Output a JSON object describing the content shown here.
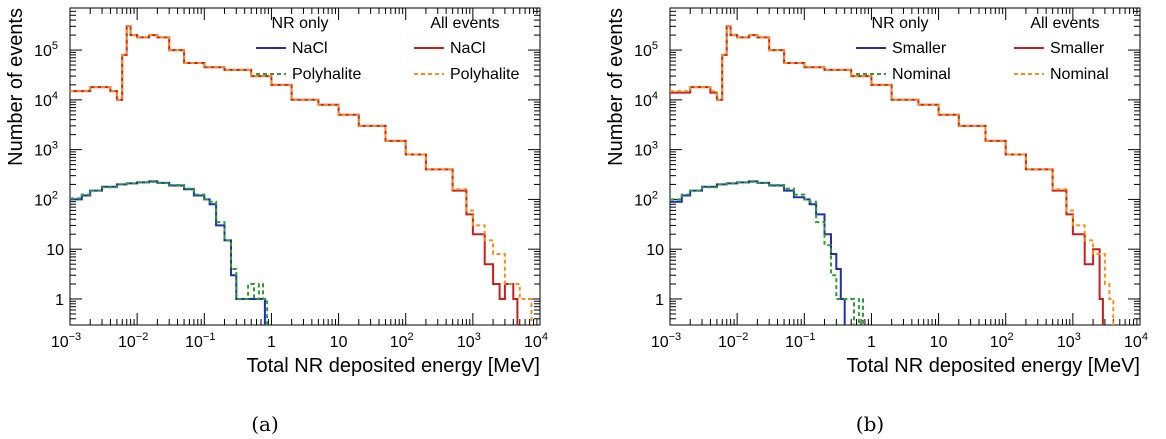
{
  "chart_data": [
    {
      "type": "line",
      "panel_label": "(a)",
      "xlabel": "Total NR deposited energy [MeV]",
      "ylabel": "Number of events",
      "x_scale": "log",
      "y_scale": "log",
      "xlim": [
        0.001,
        10000
      ],
      "ylim": [
        0.3,
        700000
      ],
      "x_ticks": [
        {
          "label": "10",
          "sup": "−3"
        },
        {
          "label": "10",
          "sup": "−2"
        },
        {
          "label": "10",
          "sup": "−1"
        },
        {
          "label": "1",
          "sup": ""
        },
        {
          "label": "10",
          "sup": ""
        },
        {
          "label": "10",
          "sup": "2"
        },
        {
          "label": "10",
          "sup": "3"
        },
        {
          "label": "10",
          "sup": "4"
        }
      ],
      "y_ticks": [
        {
          "label": "1",
          "sup": ""
        },
        {
          "label": "10",
          "sup": ""
        },
        {
          "label": "10",
          "sup": "2"
        },
        {
          "label": "10",
          "sup": "3"
        },
        {
          "label": "10",
          "sup": "4"
        },
        {
          "label": "10",
          "sup": "5"
        }
      ],
      "legend_headers": [
        "NR only",
        "All events"
      ],
      "series": [
        {
          "name": "NaCl",
          "group": "NR only",
          "color": "#1f2fb0",
          "style": "solid",
          "x": [
            0.001,
            0.0015,
            0.002,
            0.003,
            0.005,
            0.007,
            0.01,
            0.015,
            0.02,
            0.03,
            0.05,
            0.07,
            0.1,
            0.12,
            0.15,
            0.2,
            0.25,
            0.3,
            0.45,
            0.6,
            0.75,
            0.8
          ],
          "y": [
            100,
            120,
            150,
            180,
            200,
            210,
            220,
            230,
            215,
            190,
            160,
            120,
            100,
            80,
            30,
            15,
            3,
            1,
            1,
            1,
            1,
            0
          ]
        },
        {
          "name": "Polyhalite",
          "group": "NR only",
          "color": "#2ca02c",
          "style": "dotted",
          "x": [
            0.001,
            0.0015,
            0.002,
            0.003,
            0.005,
            0.007,
            0.01,
            0.015,
            0.02,
            0.03,
            0.05,
            0.07,
            0.1,
            0.12,
            0.15,
            0.2,
            0.25,
            0.3,
            0.45,
            0.55,
            0.65,
            0.75
          ],
          "y": [
            105,
            125,
            150,
            175,
            200,
            210,
            220,
            225,
            215,
            195,
            165,
            125,
            100,
            90,
            35,
            15,
            4,
            1,
            2,
            1,
            2,
            1
          ]
        },
        {
          "name": "NaCl",
          "group": "All events",
          "color": "#c81e1e",
          "style": "solid",
          "x": [
            0.001,
            0.002,
            0.004,
            0.005,
            0.006,
            0.007,
            0.008,
            0.01,
            0.015,
            0.02,
            0.03,
            0.05,
            0.1,
            0.2,
            0.5,
            1,
            2,
            5,
            10,
            20,
            50,
            100,
            200,
            500,
            800,
            1000,
            1500,
            2000,
            2500,
            3000,
            4000
          ],
          "y": [
            15000,
            18000,
            15000,
            10000,
            80000,
            300000,
            200000,
            180000,
            200000,
            180000,
            100000,
            55000,
            45000,
            40000,
            30000,
            20000,
            10000,
            8000,
            5000,
            3000,
            1500,
            800,
            400,
            150,
            50,
            20,
            5,
            2,
            1,
            2,
            1
          ]
        },
        {
          "name": "Polyhalite",
          "group": "All events",
          "color": "#ff8c1a",
          "style": "dotted",
          "x": [
            0.001,
            0.002,
            0.004,
            0.005,
            0.006,
            0.007,
            0.008,
            0.01,
            0.015,
            0.02,
            0.03,
            0.05,
            0.1,
            0.2,
            0.5,
            1,
            2,
            5,
            10,
            20,
            50,
            100,
            200,
            500,
            800,
            1000,
            1500,
            2000,
            3000,
            5000,
            6500
          ],
          "y": [
            15000,
            18000,
            15000,
            10000,
            80000,
            300000,
            200000,
            180000,
            200000,
            180000,
            100000,
            55000,
            45000,
            40000,
            30000,
            20000,
            10000,
            8000,
            5000,
            3000,
            1500,
            800,
            400,
            160,
            60,
            30,
            15,
            8,
            2,
            1,
            1
          ]
        }
      ]
    },
    {
      "type": "line",
      "panel_label": "(b)",
      "xlabel": "Total NR deposited energy [MeV]",
      "ylabel": "Number of events",
      "x_scale": "log",
      "y_scale": "log",
      "xlim": [
        0.001,
        10000
      ],
      "ylim": [
        0.3,
        700000
      ],
      "x_ticks": [
        {
          "label": "10",
          "sup": "−3"
        },
        {
          "label": "10",
          "sup": "−2"
        },
        {
          "label": "10",
          "sup": "−1"
        },
        {
          "label": "1",
          "sup": ""
        },
        {
          "label": "10",
          "sup": ""
        },
        {
          "label": "10",
          "sup": "2"
        },
        {
          "label": "10",
          "sup": "3"
        },
        {
          "label": "10",
          "sup": "4"
        }
      ],
      "y_ticks": [
        {
          "label": "1",
          "sup": ""
        },
        {
          "label": "10",
          "sup": ""
        },
        {
          "label": "10",
          "sup": "2"
        },
        {
          "label": "10",
          "sup": "3"
        },
        {
          "label": "10",
          "sup": "4"
        },
        {
          "label": "10",
          "sup": "5"
        }
      ],
      "legend_headers": [
        "NR only",
        "All events"
      ],
      "series": [
        {
          "name": "Smaller",
          "group": "NR only",
          "color": "#1f2fb0",
          "style": "solid",
          "x": [
            0.001,
            0.0015,
            0.002,
            0.003,
            0.005,
            0.007,
            0.01,
            0.015,
            0.02,
            0.03,
            0.05,
            0.07,
            0.1,
            0.12,
            0.15,
            0.2,
            0.25,
            0.3,
            0.35,
            0.4
          ],
          "y": [
            90,
            120,
            150,
            180,
            200,
            210,
            220,
            230,
            215,
            190,
            150,
            110,
            100,
            80,
            50,
            20,
            8,
            4,
            1,
            0
          ]
        },
        {
          "name": "Nominal",
          "group": "NR only",
          "color": "#2ca02c",
          "style": "dotted",
          "x": [
            0.001,
            0.0015,
            0.002,
            0.003,
            0.005,
            0.007,
            0.01,
            0.015,
            0.02,
            0.03,
            0.05,
            0.07,
            0.1,
            0.12,
            0.15,
            0.2,
            0.25,
            0.3,
            0.55,
            0.65,
            0.75
          ],
          "y": [
            100,
            125,
            150,
            175,
            200,
            210,
            220,
            225,
            215,
            195,
            165,
            125,
            100,
            90,
            35,
            12,
            3,
            1,
            0,
            1,
            0
          ]
        },
        {
          "name": "Smaller",
          "group": "All events",
          "color": "#c81e1e",
          "style": "solid",
          "x": [
            0.001,
            0.002,
            0.004,
            0.005,
            0.006,
            0.007,
            0.008,
            0.01,
            0.015,
            0.02,
            0.03,
            0.05,
            0.1,
            0.2,
            0.5,
            1,
            2,
            5,
            10,
            20,
            50,
            100,
            200,
            500,
            800,
            1000,
            1500,
            2000,
            2500,
            2800
          ],
          "y": [
            14000,
            18000,
            14000,
            10000,
            80000,
            300000,
            200000,
            180000,
            200000,
            180000,
            100000,
            55000,
            45000,
            40000,
            30000,
            20000,
            10000,
            8000,
            5000,
            3000,
            1500,
            800,
            400,
            150,
            50,
            20,
            5,
            10,
            1,
            0
          ]
        },
        {
          "name": "Nominal",
          "group": "All events",
          "color": "#ff8c1a",
          "style": "dotted",
          "x": [
            0.001,
            0.002,
            0.004,
            0.005,
            0.006,
            0.007,
            0.008,
            0.01,
            0.015,
            0.02,
            0.03,
            0.05,
            0.1,
            0.2,
            0.5,
            1,
            2,
            5,
            10,
            20,
            50,
            100,
            200,
            500,
            800,
            1000,
            1500,
            2000,
            3000,
            3500,
            4000
          ],
          "y": [
            15000,
            18000,
            15000,
            10000,
            80000,
            300000,
            200000,
            180000,
            200000,
            180000,
            100000,
            55000,
            45000,
            40000,
            30000,
            20000,
            10000,
            8000,
            5000,
            3000,
            1500,
            800,
            400,
            160,
            60,
            30,
            15,
            8,
            2,
            1,
            0
          ]
        }
      ]
    }
  ]
}
